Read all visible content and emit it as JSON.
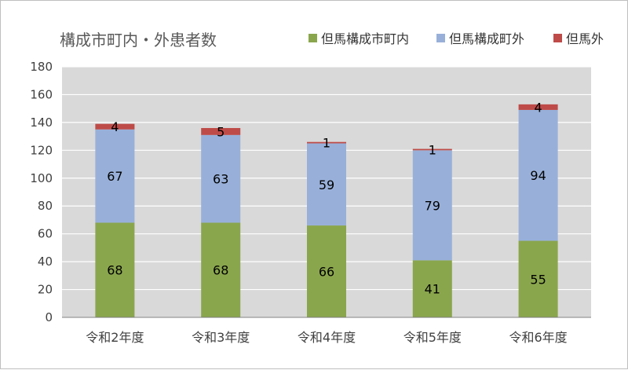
{
  "chart_data": {
    "type": "bar",
    "stacked": true,
    "title": "構成市町内・外患者数",
    "categories": [
      "令和2年度",
      "令和3年度",
      "令和4年度",
      "令和5年度",
      "令和6年度"
    ],
    "series": [
      {
        "name": "但馬構成市町内",
        "values": [
          68,
          68,
          66,
          41,
          55
        ],
        "color": "#8aa64d"
      },
      {
        "name": "但馬構成町外",
        "values": [
          67,
          63,
          59,
          79,
          94
        ],
        "color": "#98b0d9"
      },
      {
        "name": "但馬外",
        "values": [
          4,
          5,
          1,
          1,
          4
        ],
        "color": "#be4b48"
      }
    ],
    "ylim": [
      0,
      180
    ],
    "yticks": [
      0,
      20,
      40,
      60,
      80,
      100,
      120,
      140,
      160,
      180
    ],
    "grid": true,
    "legend": "top-right",
    "plot_background": "#d9d9d9"
  }
}
